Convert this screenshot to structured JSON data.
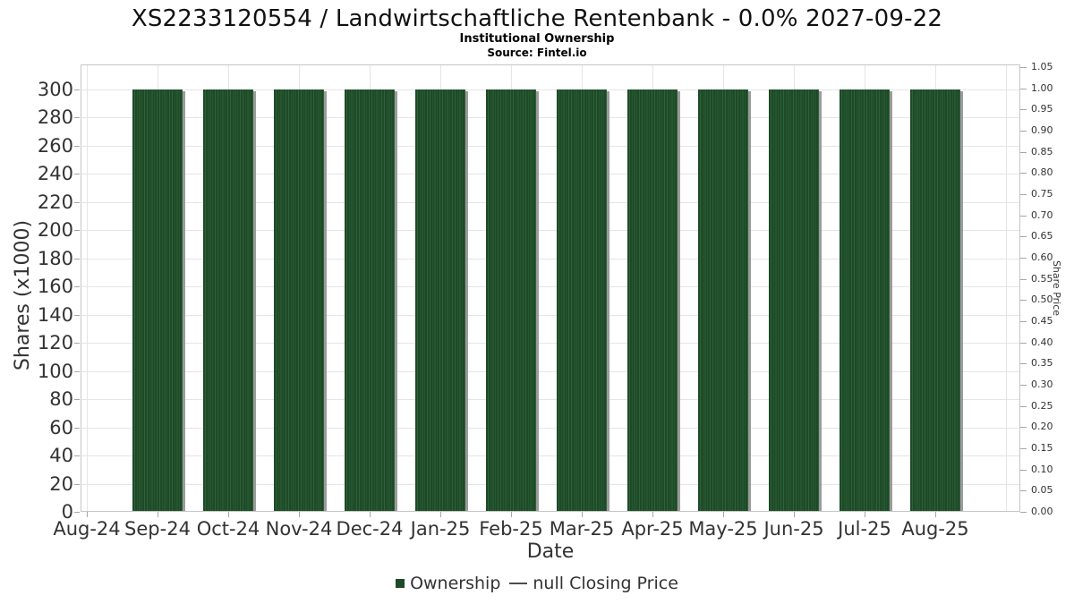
{
  "header": {
    "title": "XS2233120554 / Landwirtschaftliche Rentenbank - 0.0% 2027-09-22",
    "subtitle": "Institutional Ownership",
    "source": "Source: Fintel.io"
  },
  "chart_data": {
    "type": "bar",
    "title": "XS2233120554 / Landwirtschaftliche Rentenbank - 0.0% 2027-09-22",
    "subtitle": "Institutional Ownership",
    "source": "Source: Fintel.io",
    "xlabel": "Date",
    "ylabel_left": "Shares (x1000)",
    "ylabel_right": "Share Price",
    "x_tick_labels": [
      "Aug-24",
      "Sep-24",
      "Oct-24",
      "Nov-24",
      "Dec-24",
      "Jan-25",
      "Feb-25",
      "Mar-25",
      "Apr-25",
      "May-25",
      "Jun-25",
      "Jul-25",
      "Aug-25"
    ],
    "y_left_axis": {
      "label": "Shares (x1000)",
      "min": 0,
      "max": 300,
      "step": 20
    },
    "y_right_axis": {
      "label": "Share Price",
      "min": 0.0,
      "max": 1.05,
      "step": 0.05
    },
    "grid": true,
    "legend_position": "bottom",
    "series": [
      {
        "name": "Ownership",
        "type": "column",
        "color": "#1d4a27",
        "categories": [
          "Sep-24",
          "Oct-24",
          "Nov-24",
          "Dec-24",
          "Jan-25",
          "Feb-25",
          "Mar-25",
          "Apr-25",
          "May-25",
          "Jun-25",
          "Jul-25",
          "Aug-25"
        ],
        "values": [
          300,
          300,
          300,
          300,
          300,
          300,
          300,
          300,
          300,
          300,
          300,
          300
        ]
      },
      {
        "name": "null Closing Price",
        "type": "line",
        "color": "#4d4d4d",
        "categories": [],
        "values": []
      }
    ],
    "legend": [
      {
        "label": "Ownership",
        "marker": "square",
        "color": "#1d4a27"
      },
      {
        "label": "null Closing Price",
        "marker": "line",
        "color": "#4d4d4d"
      }
    ]
  },
  "colors": {
    "bar": "#1d4a27",
    "bar_stripe": "#30613a",
    "bar_shadow": "#909090",
    "gridline": "#e5e5e5",
    "axis_border": "#c6c6c6",
    "tick": "#a6a6a6",
    "label_text": "#333333",
    "title_text": "#111111"
  }
}
